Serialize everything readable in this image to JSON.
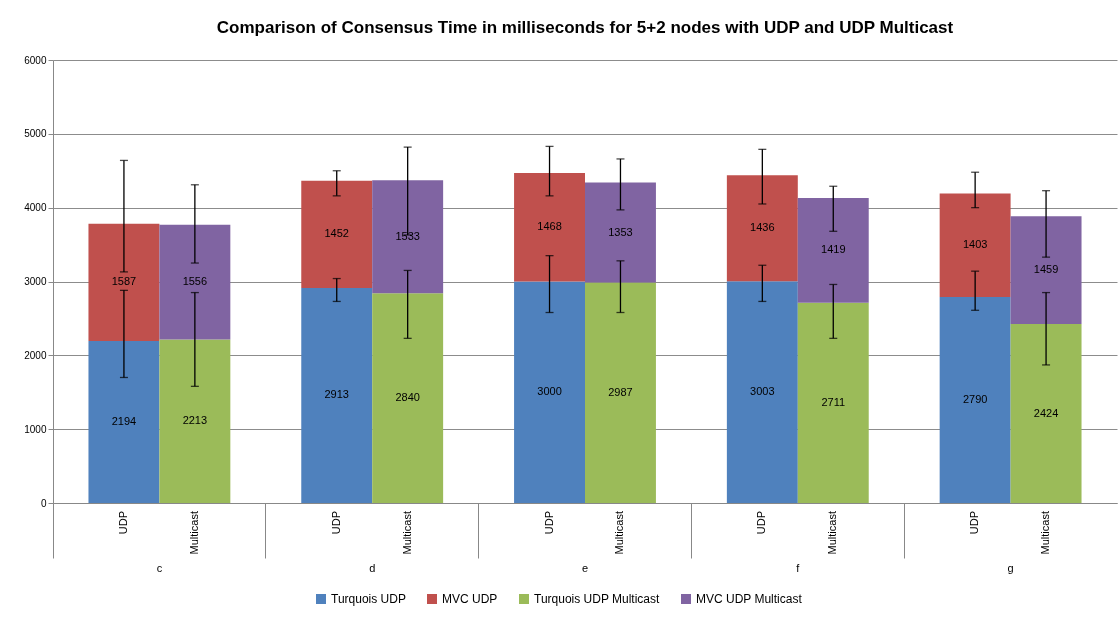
{
  "chart_data": {
    "type": "bar",
    "title": "Comparison of Consensus Time in milliseconds for 5+2 nodes with UDP and UDP Multicast",
    "categories": [
      "UDP",
      "Multicast",
      "UDP",
      "Multicast",
      "UDP",
      "Multicast",
      "UDP",
      "Multicast",
      "UDP",
      "Multicast"
    ],
    "annotations": [
      "c",
      "d",
      "e",
      "f",
      "g"
    ],
    "stacked": true,
    "data_labels": true,
    "grid": "y",
    "legend": "bottom",
    "ylim": [
      0,
      6000
    ],
    "yticks": [
      0,
      1000,
      2000,
      3000,
      4000,
      5000,
      6000
    ],
    "series": [
      {
        "name": "Turquois UDP",
        "color": "#4f81bd",
        "values": [
          2194,
          null,
          2913,
          null,
          3000,
          null,
          3003,
          null,
          2790,
          null
        ],
        "errors": [
          [
            1700,
            2880
          ],
          null,
          [
            2730,
            3040
          ],
          null,
          [
            2580,
            3350
          ],
          null,
          [
            2730,
            3220
          ],
          null,
          [
            2610,
            3140
          ],
          null
        ]
      },
      {
        "name": "MVC UDP",
        "color": "#c0504d",
        "values": [
          1587,
          null,
          1452,
          null,
          1468,
          null,
          1436,
          null,
          1403,
          null
        ],
        "errors": [
          [
            3130,
            4640
          ],
          null,
          [
            4160,
            4500
          ],
          null,
          [
            4160,
            4830
          ],
          null,
          [
            4050,
            4790
          ],
          null,
          [
            4000,
            4480
          ],
          null
        ]
      },
      {
        "name": "Turquois UDP Multicast",
        "color": "#9bbb59",
        "values": [
          null,
          2213,
          null,
          2840,
          null,
          2987,
          null,
          2711,
          null,
          2424
        ],
        "errors": [
          null,
          [
            1580,
            2850
          ],
          null,
          [
            2230,
            3150
          ],
          null,
          [
            2580,
            3280
          ],
          null,
          [
            2230,
            2960
          ],
          null,
          [
            1870,
            2850
          ]
        ]
      },
      {
        "name": "MVC UDP Multicast",
        "color": "#8064a2",
        "values": [
          null,
          1556,
          null,
          1533,
          null,
          1353,
          null,
          1419,
          null,
          1459
        ],
        "errors": [
          null,
          [
            3250,
            4310
          ],
          null,
          [
            3630,
            4820
          ],
          null,
          [
            3970,
            4660
          ],
          null,
          [
            3680,
            4290
          ],
          null,
          [
            3330,
            4230
          ]
        ]
      }
    ]
  }
}
